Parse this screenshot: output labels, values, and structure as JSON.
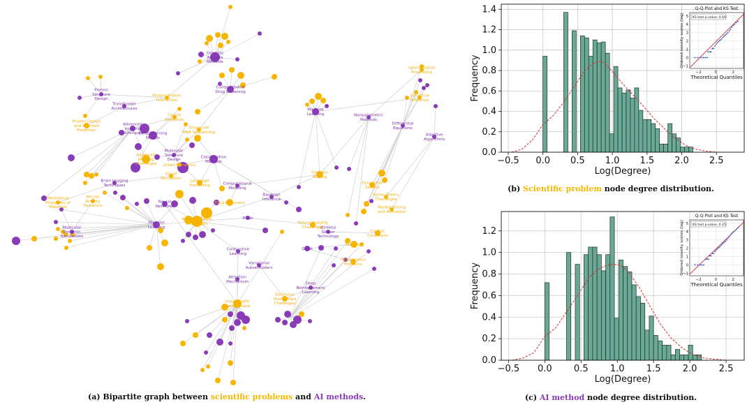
{
  "graph": {
    "colors": {
      "problem": "#f7b500",
      "method": "#8a3bb8",
      "edge": "#cfcfcf"
    },
    "method_labels": [
      "Genomic Analysis Methods",
      "Computational Drug Screening",
      "Protein Structure Design",
      "Transformer Architectures",
      "Machine Learning",
      "Advanced Imaging Techniques",
      "Deep Learning Models",
      "Molecular Structure Design",
      "Classification Methods",
      "Nonparametric Methods",
      "Differential Equations",
      "Adaptive Algorithms",
      "Brain Imaging Techniques",
      "Computational Modeling",
      "Bayesian Inference",
      "Neural Networks",
      "Molecular Dynamic Simulations",
      "Machine Learning",
      "RNNs",
      "Contrastive Learning",
      "Variational Autoencoders",
      "Wireless Sensor Technology",
      "GNNs",
      "Attention Mechanism",
      "Deep Reinforcement Learning"
    ],
    "problem_labels": [
      "Sparse Signal Processing",
      "Protein-Protein Interaction",
      "Statistical Inference",
      "Protein Design and Function Prediction",
      "Cancer Detection",
      "Single-cell RNA Sequencing",
      "Advanced Imaging Challenges",
      "Urban Dynamics",
      "Visual Perception",
      "Language Processing",
      "Decision Making",
      "Dynamical System",
      "Game Theory Challenges",
      "Mechanical Properties of Materials",
      "Neural Activity Dynamics",
      "Drug Discovery",
      "Market Pricing and Allocation",
      "Neural Network Challenges",
      "Neural Imaging Challenges",
      "Cardiac Conditions",
      "Robotics",
      "Optimization Problems",
      "Urban Traffic Management",
      "Electronic Health Data Challenges"
    ]
  },
  "chart_data": [
    {
      "type": "bar",
      "panel": "b",
      "xlabel": "Log(Degree)",
      "ylabel": "Frequency",
      "xlim": [
        -0.6,
        2.9
      ],
      "ylim": [
        0,
        1.45
      ],
      "xticks": [
        -0.5,
        0.0,
        0.5,
        1.0,
        1.5,
        2.0,
        2.5
      ],
      "yticks": [
        0.0,
        0.2,
        0.4,
        0.6,
        0.8,
        1.0,
        1.2,
        1.4
      ],
      "bar_width": 0.06,
      "bin_starts": [
        0.0,
        0.3,
        0.42,
        0.54,
        0.6,
        0.66,
        0.72,
        0.78,
        0.84,
        0.9,
        0.96,
        1.02,
        1.08,
        1.14,
        1.2,
        1.26,
        1.32,
        1.38,
        1.44,
        1.5,
        1.56,
        1.62,
        1.68,
        1.74,
        1.8,
        1.86,
        1.92,
        1.98,
        2.04,
        2.1
      ],
      "values": [
        0.94,
        1.37,
        1.19,
        1.14,
        1.12,
        0.94,
        1.1,
        1.07,
        1.08,
        0.97,
        0.18,
        0.84,
        0.63,
        0.58,
        0.61,
        0.53,
        0.63,
        0.41,
        0.32,
        0.32,
        0.28,
        0.23,
        0.08,
        0.08,
        0.28,
        0.18,
        0.14,
        0.05,
        0.05,
        0.05
      ],
      "kde": {
        "x": [
          -0.45,
          -0.3,
          -0.15,
          0.0,
          0.15,
          0.3,
          0.45,
          0.6,
          0.75,
          0.85,
          0.95,
          1.05,
          1.15,
          1.3,
          1.45,
          1.6,
          1.75,
          1.9,
          2.05,
          2.2,
          2.35,
          2.5,
          2.65
        ],
        "y": [
          0.0,
          0.03,
          0.12,
          0.27,
          0.36,
          0.49,
          0.64,
          0.8,
          0.88,
          0.89,
          0.83,
          0.75,
          0.67,
          0.56,
          0.45,
          0.33,
          0.23,
          0.14,
          0.07,
          0.03,
          0.01,
          0.0,
          0.0
        ]
      },
      "inset": {
        "title": "Q-Q Plot and KS Test",
        "ks_label": "KS test p-value: 0.00",
        "xlabel": "Theoretical Quantiles",
        "ylabel": "Ordered novelty scores (log)",
        "xticks": [
          -2,
          0,
          2
        ],
        "yticks": [
          -1,
          0,
          1,
          2,
          3,
          4,
          5
        ],
        "xlim": [
          -3,
          3.2
        ],
        "ylim": [
          -1.3,
          5.4
        ],
        "line": [
          [
            -3,
            -1.2
          ],
          [
            3.2,
            5.2
          ]
        ],
        "points": [
          [
            -2.4,
            0.0
          ],
          [
            -2.1,
            0.0
          ],
          [
            -1.8,
            0.0
          ],
          [
            -1.6,
            0.0
          ],
          [
            -1.4,
            0.0
          ],
          [
            -1.2,
            0.0
          ],
          [
            -1.0,
            0.0
          ],
          [
            -0.9,
            0.69
          ],
          [
            -0.7,
            0.69
          ],
          [
            -0.55,
            0.69
          ],
          [
            -0.4,
            1.1
          ],
          [
            -0.25,
            1.1
          ],
          [
            -0.1,
            1.39
          ],
          [
            0.05,
            1.61
          ],
          [
            0.2,
            1.79
          ],
          [
            0.35,
            1.95
          ],
          [
            0.5,
            2.08
          ],
          [
            0.65,
            2.2
          ],
          [
            0.8,
            2.4
          ],
          [
            0.95,
            2.56
          ],
          [
            1.1,
            2.7
          ],
          [
            1.25,
            2.83
          ],
          [
            1.4,
            3.0
          ],
          [
            1.55,
            3.2
          ],
          [
            1.7,
            3.4
          ],
          [
            1.85,
            3.64
          ],
          [
            2.0,
            3.85
          ],
          [
            2.15,
            4.0
          ],
          [
            2.35,
            4.2
          ],
          [
            2.55,
            4.33
          ]
        ]
      }
    },
    {
      "type": "bar",
      "panel": "c",
      "xlabel": "Log(Degree)",
      "ylabel": "Frequency",
      "xlim": [
        -0.6,
        2.75
      ],
      "ylim": [
        0,
        1.38
      ],
      "xticks": [
        -0.5,
        0.0,
        0.5,
        1.0,
        1.5,
        2.0,
        2.5
      ],
      "yticks": [
        0.0,
        0.2,
        0.4,
        0.6,
        0.8,
        1.0,
        1.2
      ],
      "bar_width": 0.06,
      "bin_starts": [
        0.0,
        0.3,
        0.42,
        0.54,
        0.6,
        0.66,
        0.72,
        0.78,
        0.84,
        0.9,
        0.96,
        1.02,
        1.08,
        1.14,
        1.2,
        1.26,
        1.32,
        1.38,
        1.44,
        1.5,
        1.56,
        1.62,
        1.68,
        1.74,
        1.8,
        1.86,
        1.92,
        1.98,
        2.04,
        2.1
      ],
      "values": [
        0.72,
        1.0,
        0.89,
        0.98,
        1.05,
        1.05,
        0.98,
        0.83,
        0.98,
        1.33,
        0.39,
        0.93,
        0.87,
        0.82,
        0.7,
        0.59,
        0.53,
        0.28,
        0.41,
        0.23,
        0.18,
        0.14,
        0.14,
        0.05,
        0.1,
        0.05,
        0.05,
        0.14,
        0.05,
        0.05
      ],
      "kde": {
        "x": [
          -0.45,
          -0.3,
          -0.15,
          0.0,
          0.15,
          0.3,
          0.45,
          0.6,
          0.75,
          0.85,
          0.95,
          1.05,
          1.15,
          1.3,
          1.45,
          1.6,
          1.75,
          1.9,
          2.05,
          2.2,
          2.35,
          2.5
        ],
        "y": [
          0.0,
          0.02,
          0.07,
          0.22,
          0.3,
          0.45,
          0.6,
          0.76,
          0.85,
          0.88,
          0.89,
          0.88,
          0.82,
          0.68,
          0.5,
          0.33,
          0.2,
          0.11,
          0.05,
          0.02,
          0.01,
          0.0
        ]
      },
      "inset": {
        "title": "Q-Q Plot and KS Test",
        "ks_label": "KS test p-value: 0.25",
        "xlabel": "Theoretical Quantiles",
        "ylabel": "Ordered novelty scores (log)",
        "xticks": [
          -2,
          0,
          2
        ],
        "yticks": [
          -1,
          0,
          1,
          2,
          3,
          4,
          5
        ],
        "xlim": [
          -3,
          3.2
        ],
        "ylim": [
          -1.3,
          5.4
        ],
        "line": [
          [
            -3,
            -1.1
          ],
          [
            3.2,
            5.1
          ]
        ],
        "points": [
          [
            -2.4,
            0.0
          ],
          [
            -2.1,
            0.0
          ],
          [
            -1.8,
            0.0
          ],
          [
            -1.6,
            0.0
          ],
          [
            -1.4,
            0.0
          ],
          [
            -1.2,
            0.69
          ],
          [
            -1.0,
            0.69
          ],
          [
            -0.85,
            0.69
          ],
          [
            -0.7,
            1.1
          ],
          [
            -0.55,
            1.1
          ],
          [
            -0.4,
            1.39
          ],
          [
            -0.25,
            1.39
          ],
          [
            -0.1,
            1.61
          ],
          [
            0.05,
            1.79
          ],
          [
            0.2,
            1.95
          ],
          [
            0.35,
            2.08
          ],
          [
            0.5,
            2.2
          ],
          [
            0.65,
            2.4
          ],
          [
            0.8,
            2.56
          ],
          [
            0.95,
            2.7
          ],
          [
            1.1,
            2.83
          ],
          [
            1.25,
            3.0
          ],
          [
            1.4,
            3.2
          ],
          [
            1.55,
            3.4
          ],
          [
            1.7,
            3.6
          ],
          [
            1.85,
            3.8
          ],
          [
            2.0,
            3.95
          ],
          [
            2.2,
            4.1
          ],
          [
            2.4,
            4.3
          ],
          [
            2.6,
            4.5
          ]
        ]
      }
    }
  ],
  "captions": {
    "a": {
      "prefix": "(a) Bipartite graph between ",
      "hl1": "scientific problems",
      "mid": " and ",
      "hl2": "AI methods",
      "suffix": "."
    },
    "b": {
      "prefix": "(b) ",
      "hl": "Scientific problem",
      "suffix": " node degree distribution."
    },
    "c": {
      "prefix": "(c) ",
      "hl": "AI method",
      "suffix": " node degree distribution."
    }
  }
}
